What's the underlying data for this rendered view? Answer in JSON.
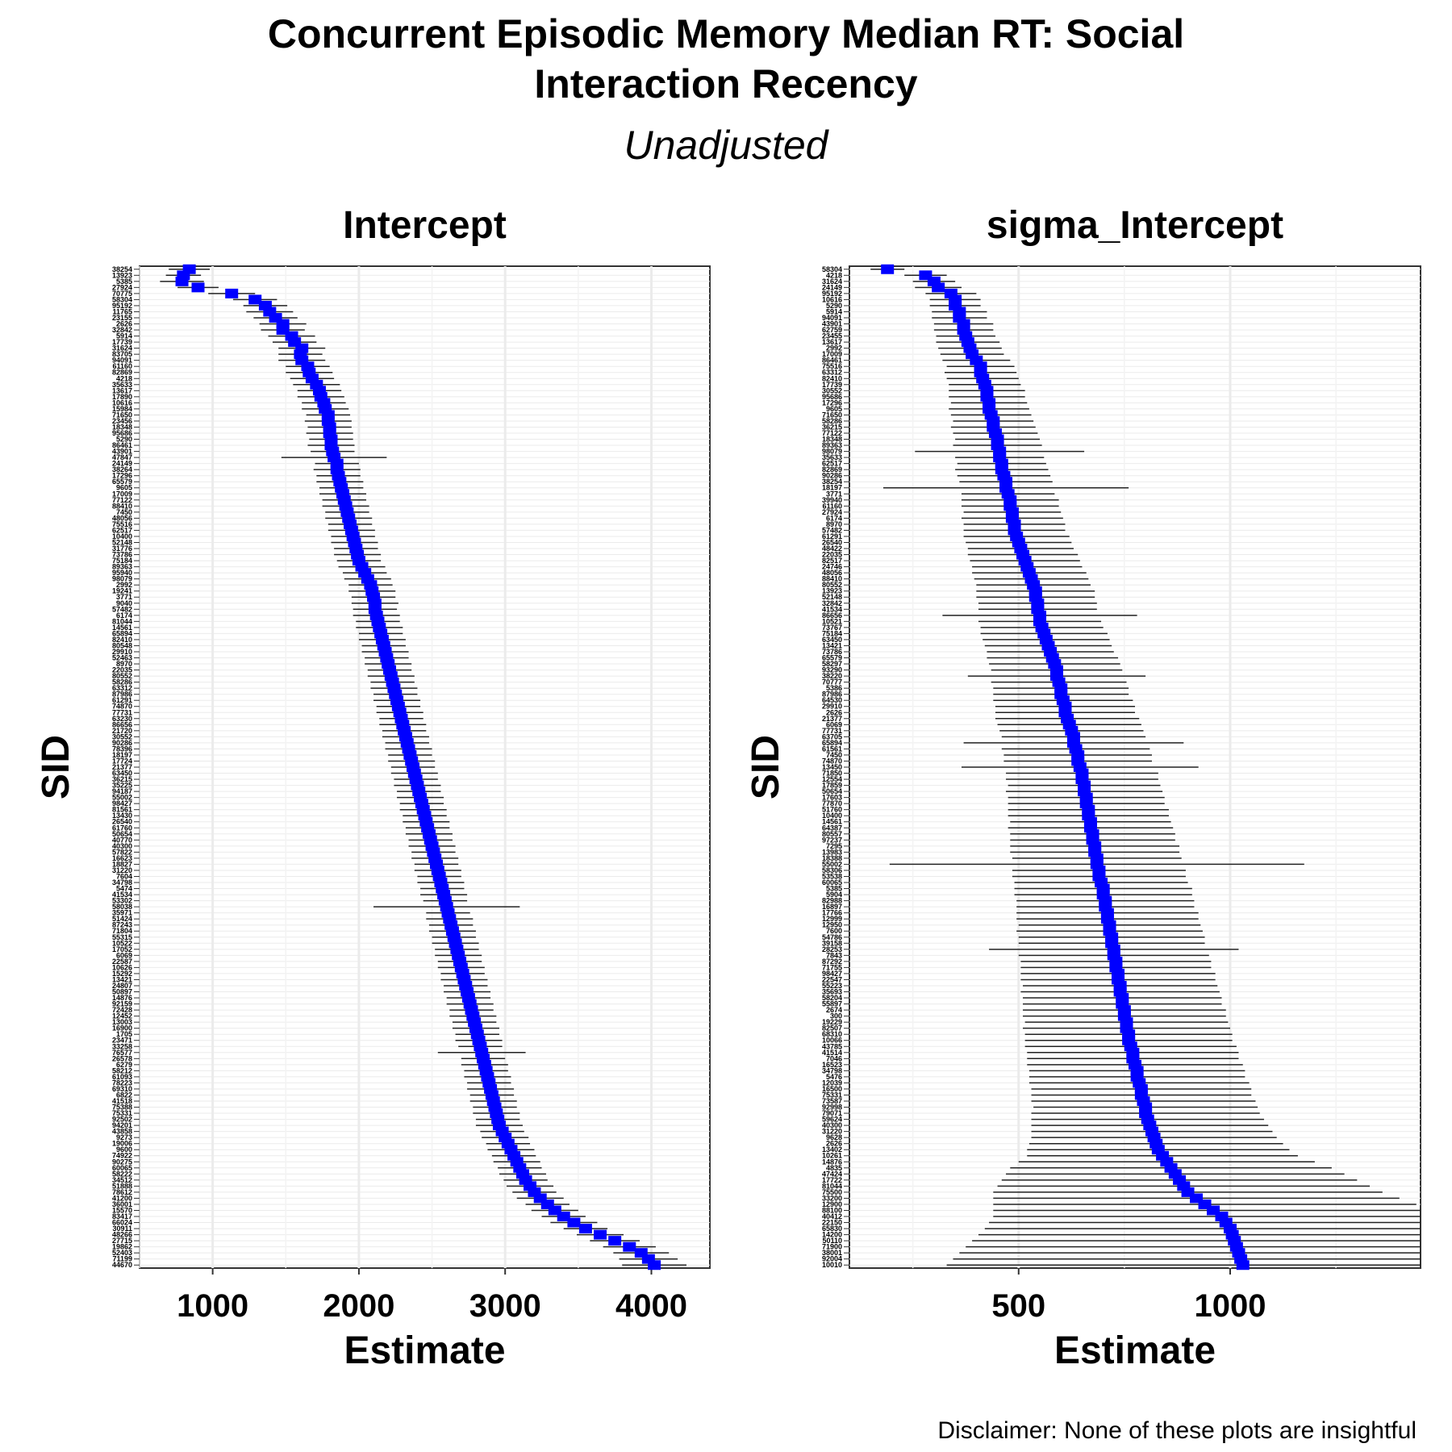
{
  "title_line1": "Concurrent Episodic Memory Median RT: Social",
  "title_line2": "Interaction Recency",
  "subtitle": "Unadjusted",
  "disclaimer": "Disclaimer: None of these plots are insightful",
  "chart_data": [
    {
      "type": "forest",
      "title": "Intercept",
      "xlabel": "Estimate",
      "ylabel": "SID",
      "xlim": [
        500,
        4400
      ],
      "xticks": [
        1000,
        2000,
        3000,
        4000
      ],
      "point_color": "#0000ff",
      "grid": true,
      "n_subjects": 165,
      "sids_top_to_bottom": [
        "38254",
        "13923",
        "5385",
        "27924",
        "70775",
        "58304",
        "95192",
        "11765",
        "23155",
        "2626",
        "32842",
        "5914",
        "17739",
        "31624",
        "83705",
        "94091",
        "61160",
        "82869",
        "4218",
        "35633",
        "13617",
        "17890",
        "10616",
        "15984",
        "71650",
        "23456",
        "18348",
        "95686",
        "5290",
        "86461",
        "43901",
        "47847",
        "24149",
        "38264",
        "17296",
        "65579",
        "9605",
        "17009",
        "77122",
        "88410",
        "7450",
        "48056",
        "75516",
        "62517",
        "10400",
        "52148",
        "31776",
        "73786",
        "75184",
        "89363",
        "95940",
        "98079",
        "2992",
        "19241",
        "3771",
        "9040",
        "57482",
        "6174",
        "81044",
        "14561",
        "65894",
        "82410",
        "80548",
        "29910",
        "52463",
        "8970",
        "22035",
        "80552",
        "58286",
        "63312",
        "87986",
        "61291",
        "74870",
        "77731",
        "63230",
        "86656",
        "21720",
        "30552",
        "90286",
        "78396",
        "18197",
        "17724",
        "21377",
        "63450",
        "36215",
        "35225",
        "94187",
        "55002",
        "98427",
        "81561",
        "13430",
        "26540",
        "61760",
        "50654",
        "40770",
        "40300",
        "57822",
        "16623",
        "18827",
        "31220",
        "7604",
        "34798",
        "5474",
        "41534",
        "53302",
        "58038",
        "35971",
        "51424",
        "87243",
        "71804",
        "55315",
        "10522",
        "17052",
        "6069",
        "22587",
        "10626",
        "15292",
        "13421",
        "24807",
        "50897",
        "14876",
        "92159",
        "72428",
        "12452",
        "13003",
        "16900",
        "1705",
        "23471",
        "33258",
        "76577",
        "26578",
        "6279",
        "58212",
        "61093",
        "78223",
        "69310",
        "6822",
        "41518",
        "75388",
        "75331",
        "92502",
        "94201",
        "43858",
        "9273",
        "19006",
        "9600",
        "74922",
        "90275",
        "60065",
        "58222",
        "34512",
        "51888",
        "78612",
        "41200",
        "36001",
        "15570",
        "83417",
        "66024",
        "30911",
        "48266",
        "27715",
        "19862",
        "52403",
        "71199",
        "44670"
      ],
      "estimates": [
        840,
        800,
        790,
        900,
        1130,
        1290,
        1360,
        1390,
        1430,
        1480,
        1480,
        1540,
        1560,
        1610,
        1600,
        1610,
        1650,
        1660,
        1680,
        1710,
        1730,
        1740,
        1760,
        1770,
        1790,
        1790,
        1800,
        1800,
        1810,
        1810,
        1820,
        1830,
        1850,
        1850,
        1860,
        1870,
        1880,
        1890,
        1900,
        1910,
        1920,
        1930,
        1940,
        1950,
        1960,
        1970,
        1980,
        1990,
        2000,
        2020,
        2040,
        2060,
        2080,
        2090,
        2100,
        2110,
        2110,
        2120,
        2130,
        2140,
        2150,
        2160,
        2170,
        2180,
        2190,
        2200,
        2210,
        2220,
        2230,
        2240,
        2250,
        2260,
        2270,
        2280,
        2290,
        2300,
        2310,
        2320,
        2330,
        2340,
        2350,
        2360,
        2370,
        2380,
        2390,
        2400,
        2410,
        2420,
        2430,
        2440,
        2450,
        2460,
        2470,
        2480,
        2490,
        2500,
        2510,
        2520,
        2530,
        2540,
        2550,
        2560,
        2570,
        2580,
        2590,
        2600,
        2610,
        2620,
        2630,
        2640,
        2650,
        2660,
        2670,
        2680,
        2690,
        2700,
        2710,
        2720,
        2730,
        2740,
        2750,
        2760,
        2770,
        2780,
        2790,
        2800,
        2810,
        2820,
        2830,
        2840,
        2850,
        2860,
        2870,
        2880,
        2890,
        2900,
        2910,
        2920,
        2930,
        2940,
        2950,
        2960,
        2980,
        3000,
        3020,
        3040,
        3060,
        3080,
        3100,
        3120,
        3140,
        3170,
        3200,
        3240,
        3290,
        3340,
        3400,
        3470,
        3550,
        3650,
        3750,
        3850,
        3930,
        3980,
        4020
      ],
      "ci_half_widths": [
        140,
        120,
        150,
        140,
        160,
        150,
        150,
        160,
        150,
        160,
        150,
        160,
        150,
        160,
        150,
        160,
        150,
        160,
        150,
        160,
        150,
        160,
        150,
        160,
        150,
        160,
        150,
        160,
        150,
        160,
        150,
        360,
        150,
        160,
        150,
        160,
        150,
        160,
        150,
        160,
        150,
        160,
        150,
        160,
        150,
        160,
        150,
        160,
        150,
        160,
        150,
        160,
        150,
        160,
        150,
        160,
        150,
        160,
        150,
        160,
        150,
        160,
        150,
        160,
        150,
        160,
        150,
        160,
        150,
        160,
        150,
        160,
        150,
        160,
        150,
        160,
        150,
        160,
        150,
        160,
        150,
        160,
        150,
        160,
        150,
        160,
        150,
        160,
        150,
        160,
        150,
        160,
        150,
        160,
        150,
        160,
        150,
        160,
        150,
        160,
        150,
        160,
        150,
        160,
        150,
        500,
        150,
        160,
        150,
        160,
        150,
        160,
        150,
        160,
        150,
        160,
        150,
        160,
        150,
        160,
        150,
        160,
        150,
        160,
        150,
        160,
        150,
        160,
        150,
        300,
        150,
        160,
        150,
        160,
        150,
        160,
        150,
        160,
        150,
        160,
        150,
        160,
        150,
        160,
        150,
        160,
        150,
        160,
        150,
        160,
        150,
        160,
        150,
        160,
        150,
        160,
        150,
        160,
        150,
        160,
        170,
        180,
        190,
        200,
        220
      ]
    },
    {
      "type": "forest",
      "title": "sigma_Intercept",
      "xlabel": "Estimate",
      "ylabel": "SID",
      "xlim": [
        100,
        1450
      ],
      "xticks": [
        500,
        1000
      ],
      "point_color": "#0000ff",
      "grid": true,
      "n_subjects": 165,
      "sids_top_to_bottom": [
        "58304",
        "4218",
        "31624",
        "24149",
        "95192",
        "10616",
        "5290",
        "5914",
        "94091",
        "43901",
        "62759",
        "23455",
        "13617",
        "2992",
        "17009",
        "86461",
        "75516",
        "63312",
        "82410",
        "17739",
        "30552",
        "95686",
        "17296",
        "9605",
        "71650",
        "58286",
        "36215",
        "77122",
        "18348",
        "89363",
        "98079",
        "35633",
        "62517",
        "82869",
        "90286",
        "38254",
        "18197",
        "3771",
        "39940",
        "61160",
        "27924",
        "6174",
        "8970",
        "57482",
        "61291",
        "26540",
        "48422",
        "22035",
        "82517",
        "24746",
        "48056",
        "88410",
        "80552",
        "13923",
        "52148",
        "32842",
        "41534",
        "86656",
        "10521",
        "73767",
        "75184",
        "63450",
        "13421",
        "73786",
        "65579",
        "58297",
        "93290",
        "38220",
        "70777",
        "5386",
        "87986",
        "64530",
        "29910",
        "2626",
        "21377",
        "6069",
        "77731",
        "63705",
        "65894",
        "61561",
        "7450",
        "74870",
        "13450",
        "71850",
        "12554",
        "17859",
        "50654",
        "17603",
        "77870",
        "51760",
        "10400",
        "14561",
        "64387",
        "80557",
        "97237",
        "7295",
        "13983",
        "18388",
        "55002",
        "58306",
        "53538",
        "60065",
        "5385",
        "5904",
        "82988",
        "16897",
        "17766",
        "12999",
        "12950",
        "7600",
        "54786",
        "39158",
        "28253",
        "7843",
        "87292",
        "71755",
        "98427",
        "22547",
        "55223",
        "35693",
        "58204",
        "55897",
        "2674",
        "300",
        "19229",
        "82507",
        "68310",
        "10066",
        "43785",
        "41514",
        "7046",
        "16523",
        "34798",
        "5476",
        "12039",
        "16500",
        "75331",
        "73587",
        "92998",
        "79071",
        "59624",
        "40300",
        "31220",
        "9628",
        "2626",
        "13402",
        "10261",
        "14876",
        "4835",
        "47424",
        "17722",
        "81044",
        "75500",
        "33200",
        "12900",
        "88100",
        "40412",
        "22150",
        "65830",
        "14200",
        "50110",
        "71900",
        "38001",
        "92004",
        "10010"
      ],
      "estimates": [
        190,
        280,
        300,
        310,
        340,
        350,
        350,
        360,
        360,
        370,
        370,
        375,
        380,
        385,
        390,
        400,
        410,
        410,
        415,
        420,
        425,
        425,
        430,
        430,
        435,
        440,
        440,
        445,
        450,
        450,
        455,
        455,
        460,
        460,
        465,
        470,
        470,
        475,
        480,
        480,
        485,
        485,
        490,
        490,
        495,
        500,
        505,
        510,
        515,
        520,
        525,
        530,
        535,
        540,
        540,
        545,
        545,
        550,
        550,
        555,
        560,
        565,
        570,
        575,
        580,
        585,
        590,
        590,
        595,
        600,
        600,
        605,
        610,
        610,
        615,
        620,
        625,
        630,
        630,
        635,
        640,
        640,
        645,
        650,
        650,
        655,
        655,
        660,
        660,
        665,
        665,
        670,
        670,
        675,
        675,
        680,
        680,
        685,
        685,
        690,
        690,
        695,
        700,
        700,
        705,
        705,
        710,
        710,
        715,
        715,
        720,
        720,
        725,
        725,
        730,
        730,
        735,
        735,
        740,
        740,
        745,
        745,
        750,
        750,
        755,
        755,
        760,
        760,
        765,
        770,
        770,
        775,
        780,
        780,
        785,
        790,
        790,
        795,
        800,
        800,
        805,
        810,
        815,
        820,
        825,
        830,
        840,
        850,
        860,
        870,
        880,
        890,
        900,
        920,
        940,
        960,
        980,
        990,
        1000,
        1005,
        1010,
        1015,
        1020,
        1025,
        1030
      ],
      "ci_half_widths": [
        40,
        50,
        50,
        55,
        60,
        60,
        60,
        65,
        65,
        70,
        70,
        70,
        75,
        75,
        75,
        80,
        80,
        85,
        85,
        85,
        90,
        90,
        90,
        95,
        95,
        95,
        100,
        100,
        100,
        105,
        200,
        105,
        105,
        110,
        110,
        110,
        290,
        110,
        115,
        115,
        115,
        120,
        120,
        120,
        125,
        125,
        125,
        130,
        130,
        130,
        135,
        135,
        135,
        140,
        140,
        140,
        140,
        230,
        145,
        145,
        150,
        150,
        150,
        150,
        155,
        155,
        155,
        210,
        160,
        160,
        160,
        165,
        165,
        165,
        170,
        170,
        170,
        170,
        260,
        175,
        175,
        175,
        280,
        180,
        180,
        180,
        185,
        185,
        185,
        190,
        190,
        190,
        195,
        195,
        195,
        200,
        200,
        200,
        490,
        205,
        205,
        205,
        210,
        210,
        210,
        210,
        215,
        215,
        215,
        220,
        220,
        220,
        295,
        225,
        225,
        225,
        230,
        230,
        230,
        235,
        235,
        235,
        240,
        240,
        240,
        245,
        245,
        245,
        250,
        250,
        250,
        255,
        255,
        255,
        260,
        260,
        260,
        265,
        265,
        270,
        275,
        280,
        285,
        290,
        300,
        310,
        320,
        350,
        380,
        400,
        420,
        440,
        460,
        480,
        500,
        520,
        540,
        560,
        580,
        600,
        620,
        640,
        660,
        680,
        700
      ]
    }
  ]
}
